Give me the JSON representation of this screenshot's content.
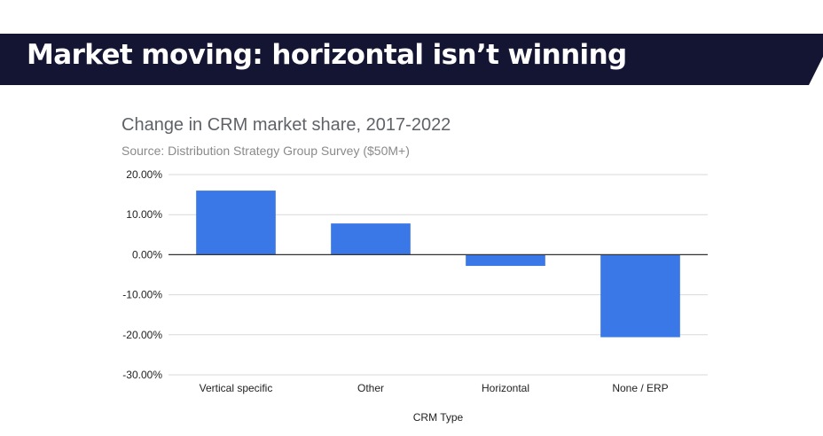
{
  "banner": {
    "title": "Market moving: horizontal isn’t winning",
    "background_color": "#131533"
  },
  "chart_data": {
    "type": "bar",
    "title": "Change in CRM market share, 2017-2022",
    "subtitle": "Source:  Distribution Strategy Group Survey ($50M+)",
    "xlabel": "CRM Type",
    "ylabel": "",
    "categories": [
      "Vertical specific",
      "Other",
      "Horizontal",
      "None / ERP"
    ],
    "values": [
      16.0,
      7.8,
      -2.8,
      -20.6
    ],
    "ylim": [
      -30,
      20
    ],
    "yticks": [
      20,
      10,
      0,
      -10,
      -20,
      -30
    ],
    "ytick_labels": [
      "20.00%",
      "10.00%",
      "0.00%",
      "-10.00%",
      "-20.00%",
      "-30.00%"
    ],
    "grid": true,
    "bar_color": "#3b78e7"
  }
}
